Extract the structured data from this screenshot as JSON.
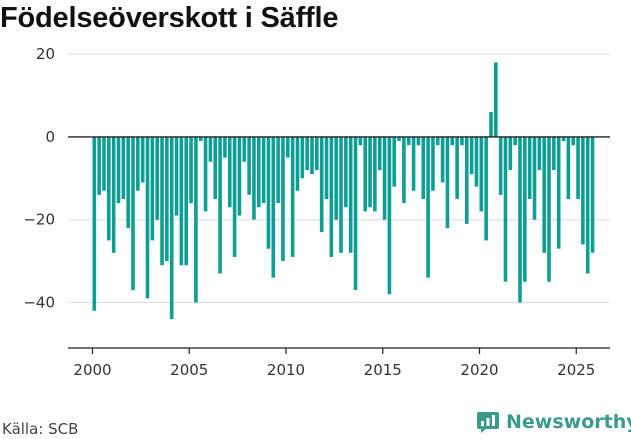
{
  "title": "Födelseöverskott i Säffle",
  "footer": {
    "source": "Källa: SCB",
    "brand": "Newsworthy"
  },
  "colors": {
    "bar": "#0e9f94",
    "grid": "#dcdcdc",
    "axis": "#222222",
    "brand": "#3a9a8c"
  },
  "chart_data": {
    "type": "bar",
    "title": "Födelseöverskott i Säffle",
    "xlabel": "",
    "ylabel": "",
    "frequency": "quarterly",
    "start": "2000 Q1",
    "xticks": [
      "2000",
      "2005",
      "2010",
      "2015",
      "2020",
      "2025"
    ],
    "yticks": [
      20,
      0,
      -20,
      -40
    ],
    "ylim": [
      -51,
      21
    ],
    "grid": true,
    "values": [
      -42,
      -14,
      -13,
      -25,
      -28,
      -16,
      -15,
      -22,
      -37,
      -13,
      -11,
      -39,
      -25,
      -20,
      -31,
      -30,
      -44,
      -19,
      -31,
      -31,
      -16,
      -40,
      -1,
      -18,
      -6,
      -15,
      -33,
      -5,
      -17,
      -29,
      -19,
      -6,
      -14,
      -20,
      -17,
      -16,
      -27,
      -34,
      -16,
      -30,
      -5,
      -29,
      -13,
      -10,
      -8,
      -9,
      -8,
      -23,
      -15,
      -29,
      -20,
      -28,
      -17,
      -28,
      -37,
      -2,
      -18,
      -17,
      -18,
      -8,
      -20,
      -38,
      -12,
      -1,
      -16,
      -2,
      -13,
      -2,
      -15,
      -34,
      -13,
      -2,
      -11,
      -22,
      -2,
      -15,
      -2,
      -21,
      -9,
      -12,
      -18,
      -25,
      6,
      18,
      -14,
      -35,
      -8,
      -2,
      -40,
      -35,
      -15,
      -20,
      -8,
      -28,
      -35,
      -8,
      -27,
      -1,
      -15,
      -2,
      -15,
      -26,
      -33,
      -28
    ]
  }
}
